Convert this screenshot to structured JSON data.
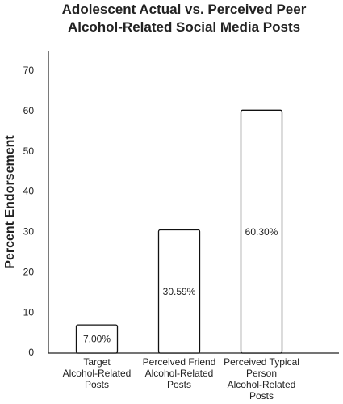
{
  "chart_data": {
    "type": "bar",
    "title": "Adolescent Actual vs. Perceived Peer Alcohol-Related Social Media Posts",
    "y_label": "Percent Endorsement",
    "categories": [
      "Target Alcohol-Related Posts",
      "Perceived Friend Alcohol-Related Posts",
      "Perceived Typical Person Alcohol-Related Posts"
    ],
    "values": [
      7,
      30.59,
      60.3
    ],
    "value_labels": [
      "7.00%",
      "30.59%",
      "60.30%"
    ],
    "color": "#ffffff",
    "ylim": [
      0,
      75
    ],
    "yticks": [
      0,
      10,
      20,
      30,
      40,
      50,
      60,
      70
    ],
    "grid": false
  }
}
